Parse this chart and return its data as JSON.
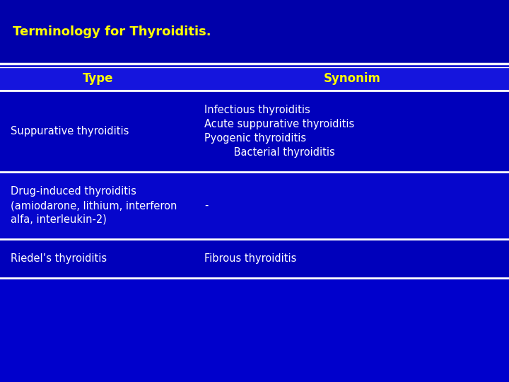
{
  "title": "Terminology for Thyroiditis.",
  "title_color": "#FFFF00",
  "title_fontsize": 13,
  "background_color": "#0000CC",
  "header_bg_color": "#1515DD",
  "row1_bg_color": "#0000BB",
  "row2_bg_color": "#1515CC",
  "line_color": "#FFFFFF",
  "header_text_color": "#FFFF00",
  "body_text_color": "#FFFFFF",
  "header": [
    "Type",
    "Synonim"
  ],
  "rows": [
    {
      "type": "Suppurative thyroiditis",
      "synonim": "Infectious thyroiditis\nAcute suppurative thyroiditis\nPyogenic thyroiditis\n         Bacterial thyroiditis"
    },
    {
      "type": "Drug-induced thyroiditis\n(amiodarone, lithium, interferon\nalfa, interleukin-2)",
      "synonim": "-"
    },
    {
      "type": "Riedel’s thyroiditis",
      "synonim": "Fibrous thyroiditis"
    }
  ],
  "col_split": 0.385,
  "figsize": [
    7.2,
    5.4
  ],
  "dpi": 100
}
